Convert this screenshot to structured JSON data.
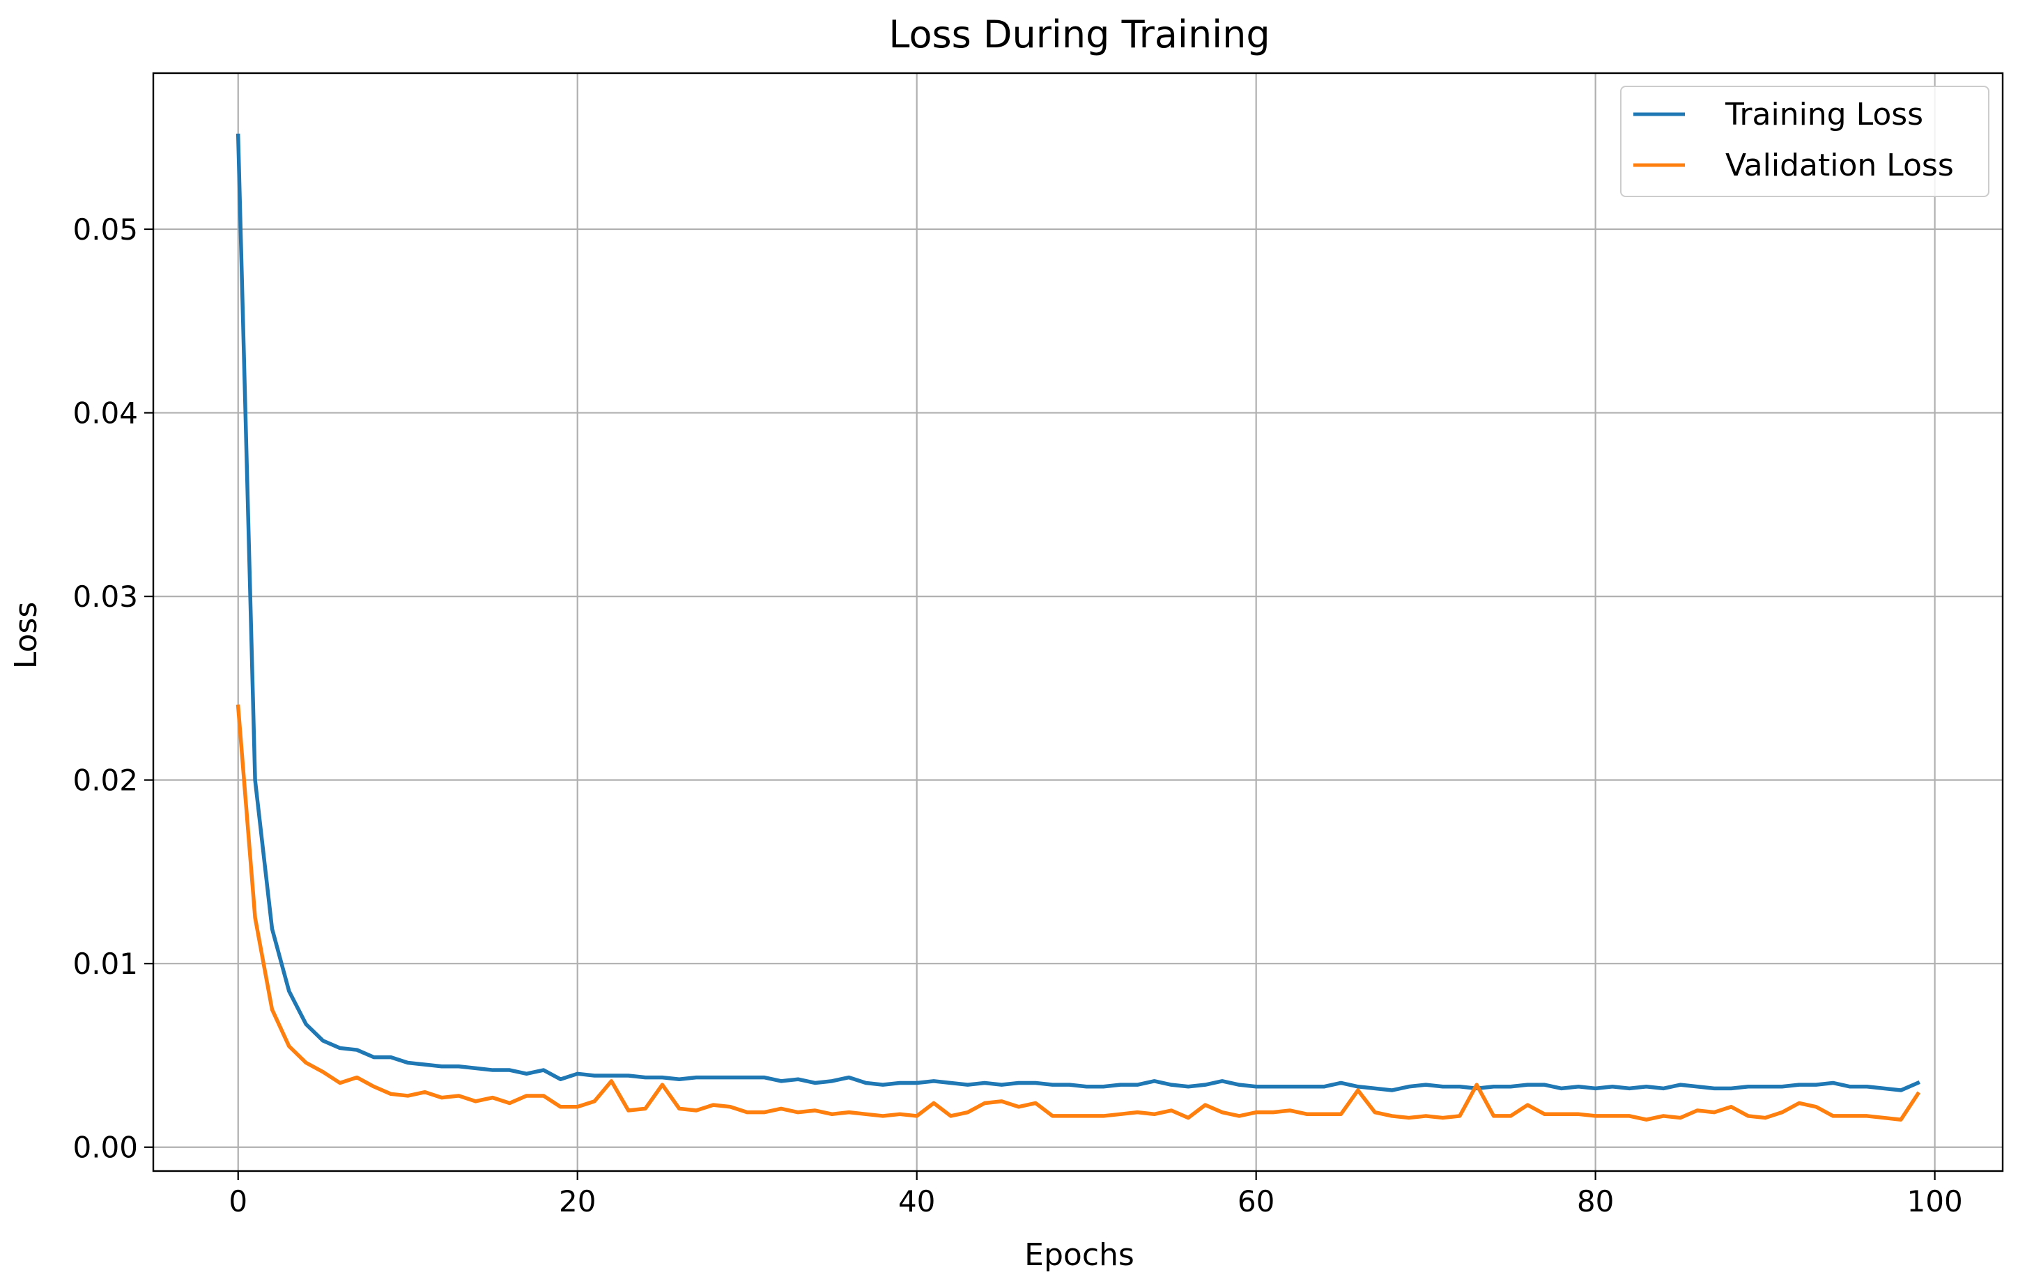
{
  "chart_data": {
    "type": "line",
    "title": "Loss During Training",
    "xlabel": "Epochs",
    "ylabel": "Loss",
    "xlim": [
      -5,
      104
    ],
    "ylim": [
      -0.0013,
      0.0585
    ],
    "x_ticks": [
      0,
      20,
      40,
      60,
      80,
      100
    ],
    "x_tick_labels": [
      "0",
      "20",
      "40",
      "60",
      "80",
      "100"
    ],
    "y_ticks": [
      0.0,
      0.01,
      0.02,
      0.03,
      0.04,
      0.05
    ],
    "y_tick_labels": [
      "0.00",
      "0.01",
      "0.02",
      "0.03",
      "0.04",
      "0.05"
    ],
    "grid": true,
    "legend_position": "top-right",
    "series": [
      {
        "name": "Training Loss",
        "color": "#1f77b4",
        "values": [
          0.0551,
          0.02,
          0.0119,
          0.0085,
          0.0067,
          0.0058,
          0.0054,
          0.0053,
          0.0049,
          0.0049,
          0.0046,
          0.0045,
          0.0044,
          0.0044,
          0.0043,
          0.0042,
          0.0042,
          0.004,
          0.0042,
          0.0037,
          0.004,
          0.0039,
          0.0039,
          0.0039,
          0.0038,
          0.0038,
          0.0037,
          0.0038,
          0.0038,
          0.0038,
          0.0038,
          0.0038,
          0.0036,
          0.0037,
          0.0035,
          0.0036,
          0.0038,
          0.0035,
          0.0034,
          0.0035,
          0.0035,
          0.0036,
          0.0035,
          0.0034,
          0.0035,
          0.0034,
          0.0035,
          0.0035,
          0.0034,
          0.0034,
          0.0033,
          0.0033,
          0.0034,
          0.0034,
          0.0036,
          0.0034,
          0.0033,
          0.0034,
          0.0036,
          0.0034,
          0.0033,
          0.0033,
          0.0033,
          0.0033,
          0.0033,
          0.0035,
          0.0033,
          0.0032,
          0.0031,
          0.0033,
          0.0034,
          0.0033,
          0.0033,
          0.0032,
          0.0033,
          0.0033,
          0.0034,
          0.0034,
          0.0032,
          0.0033,
          0.0032,
          0.0033,
          0.0032,
          0.0033,
          0.0032,
          0.0034,
          0.0033,
          0.0032,
          0.0032,
          0.0033,
          0.0033,
          0.0033,
          0.0034,
          0.0034,
          0.0035,
          0.0033,
          0.0033,
          0.0032,
          0.0031,
          0.0035
        ]
      },
      {
        "name": "Validation Loss",
        "color": "#ff7f0e",
        "values": [
          0.024,
          0.0125,
          0.0075,
          0.0055,
          0.0046,
          0.0041,
          0.0035,
          0.0038,
          0.0033,
          0.0029,
          0.0028,
          0.003,
          0.0027,
          0.0028,
          0.0025,
          0.0027,
          0.0024,
          0.0028,
          0.0028,
          0.0022,
          0.0022,
          0.0025,
          0.0036,
          0.002,
          0.0021,
          0.0034,
          0.0021,
          0.002,
          0.0023,
          0.0022,
          0.0019,
          0.0019,
          0.0021,
          0.0019,
          0.002,
          0.0018,
          0.0019,
          0.0018,
          0.0017,
          0.0018,
          0.0017,
          0.0024,
          0.0017,
          0.0019,
          0.0024,
          0.0025,
          0.0022,
          0.0024,
          0.0017,
          0.0017,
          0.0017,
          0.0017,
          0.0018,
          0.0019,
          0.0018,
          0.002,
          0.0016,
          0.0023,
          0.0019,
          0.0017,
          0.0019,
          0.0019,
          0.002,
          0.0018,
          0.0018,
          0.0018,
          0.0031,
          0.0019,
          0.0017,
          0.0016,
          0.0017,
          0.0016,
          0.0017,
          0.0034,
          0.0017,
          0.0017,
          0.0023,
          0.0018,
          0.0018,
          0.0018,
          0.0017,
          0.0017,
          0.0017,
          0.0015,
          0.0017,
          0.0016,
          0.002,
          0.0019,
          0.0022,
          0.0017,
          0.0016,
          0.0019,
          0.0024,
          0.0022,
          0.0017,
          0.0017,
          0.0017,
          0.0016,
          0.0015,
          0.0029
        ]
      }
    ]
  }
}
